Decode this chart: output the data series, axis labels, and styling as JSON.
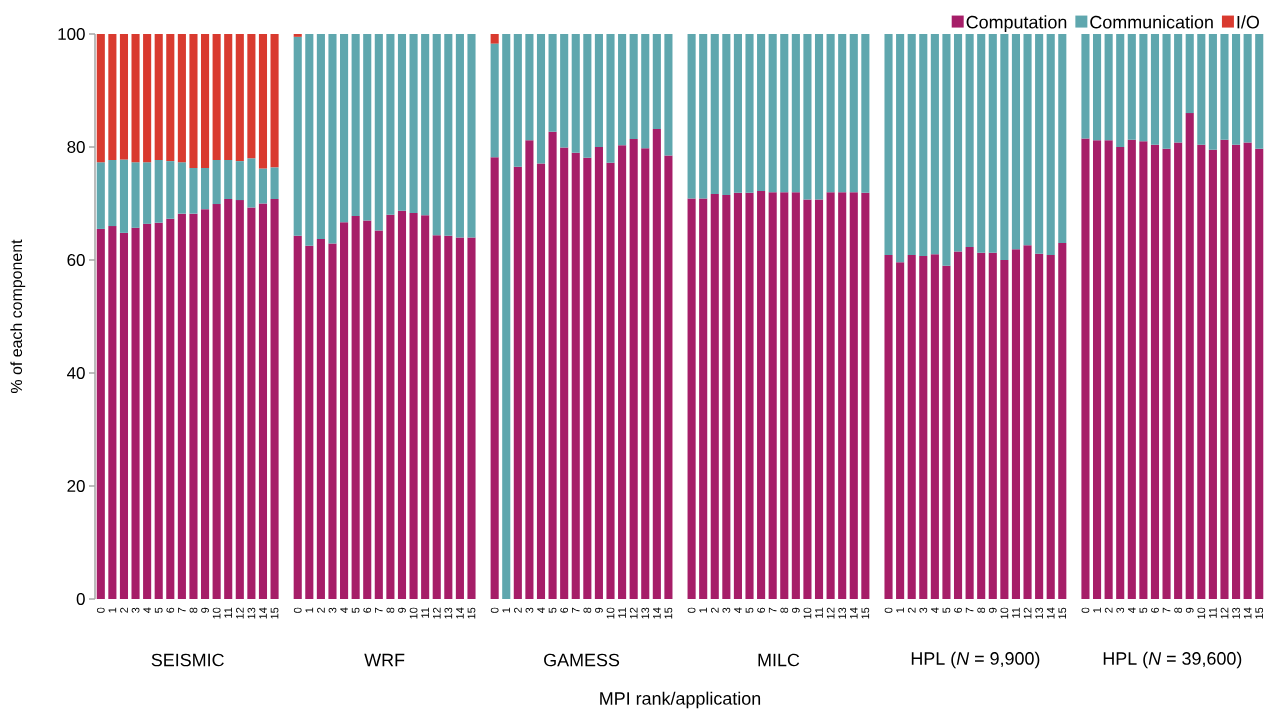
{
  "chart_data": {
    "type": "bar",
    "stacked": true,
    "xlabel": "MPI rank/application",
    "ylabel": "% of each component",
    "categories": [
      "0",
      "1",
      "2",
      "3",
      "4",
      "5",
      "6",
      "7",
      "8",
      "9",
      "10",
      "11",
      "12",
      "13",
      "14",
      "15",
      null,
      "0",
      "1",
      "2",
      "3",
      "4",
      "5",
      "6",
      "7",
      "8",
      "9",
      "10",
      "11",
      "12",
      "13",
      "14",
      "15",
      null,
      "0",
      "1",
      "2",
      "3",
      "4",
      "5",
      "6",
      "7",
      "8",
      "9",
      "10",
      "11",
      "12",
      "13",
      "14",
      "15",
      null,
      "0",
      "1",
      "2",
      "3",
      "4",
      "5",
      "6",
      "7",
      "8",
      "9",
      "10",
      "11",
      "12",
      "13",
      "14",
      "15",
      null,
      "0",
      "1",
      "2",
      "3",
      "4",
      "5",
      "6",
      "7",
      "8",
      "9",
      "10",
      "11",
      "12",
      "13",
      "14",
      "15",
      null,
      "0",
      "1",
      "2",
      "3",
      "4",
      "5",
      "6",
      "7",
      "8",
      "9",
      "10",
      "11",
      "12",
      "13",
      "14",
      "15"
    ],
    "series": [
      {
        "name": "Computation",
        "color": "#a61e68",
        "values": [
          65.5,
          66,
          64.8,
          65.7,
          66.4,
          66.6,
          67.3,
          68.2,
          68.2,
          69,
          69.9,
          70.8,
          70.6,
          69.3,
          70,
          70.8,
          null,
          64.3,
          62.5,
          63.7,
          62.9,
          66.7,
          67.8,
          67,
          65.2,
          68,
          68.7,
          68.3,
          67.9,
          64.4,
          64.3,
          64,
          64,
          null,
          78.2,
          0,
          76.5,
          81.2,
          77.1,
          82.7,
          79.9,
          79,
          78.1,
          80,
          77.2,
          80.3,
          81.4,
          79.8,
          83.2,
          78.5,
          null,
          70.9,
          70.9,
          71.7,
          71.5,
          71.9,
          71.9,
          72.2,
          72,
          72,
          72,
          70.7,
          70.7,
          72,
          72,
          72,
          71.9,
          null,
          60.9,
          59.6,
          60.9,
          60.7,
          61,
          59,
          61.5,
          62.3,
          61.3,
          61.3,
          60,
          61.9,
          62.6,
          61.1,
          60.9,
          63,
          null,
          81.5,
          81.2,
          81.2,
          80,
          81.3,
          81,
          80.4,
          79.7,
          80.8,
          86,
          80.4,
          79.5,
          81.3,
          80.4,
          80.8,
          79.7
        ]
      },
      {
        "name": "Communication",
        "color": "#5fa7ae",
        "values": [
          11.8,
          11.7,
          13,
          11.6,
          10.9,
          11.1,
          10.2,
          9.1,
          8.1,
          7.3,
          7.8,
          6.9,
          6.9,
          8.7,
          6.2,
          5.6,
          null,
          35.2,
          37.5,
          36.3,
          37.1,
          33.3,
          32.2,
          33,
          34.8,
          32,
          31.3,
          31.7,
          32.1,
          35.6,
          35.7,
          36,
          36,
          null,
          20.1,
          100,
          23.5,
          18.8,
          22.9,
          17.3,
          20.1,
          21,
          21.9,
          20,
          22.8,
          19.7,
          18.6,
          20.2,
          16.8,
          21.5,
          null,
          29.1,
          29.1,
          28.3,
          28.5,
          28.1,
          28.1,
          27.8,
          28,
          28,
          28,
          29.3,
          29.3,
          28,
          28,
          28,
          28.1,
          null,
          39.1,
          40.4,
          39.1,
          39.3,
          39,
          41,
          38.5,
          37.7,
          38.7,
          38.7,
          40,
          38.1,
          37.4,
          38.9,
          39.1,
          37,
          null,
          18.5,
          18.8,
          18.8,
          20,
          18.7,
          19,
          19.6,
          20.3,
          19.2,
          14,
          19.6,
          20.5,
          18.7,
          19.6,
          19.2,
          20.3
        ]
      },
      {
        "name": "I/O",
        "color": "#d93a2f",
        "values": [
          22.7,
          22.3,
          22.2,
          22.7,
          22.7,
          22.3,
          22.5,
          22.7,
          23.7,
          23.7,
          22.3,
          22.3,
          22.5,
          22,
          23.8,
          23.6,
          null,
          0.5,
          0,
          0,
          0,
          0,
          0,
          0,
          0,
          0,
          0,
          0,
          0,
          0,
          0,
          0,
          0,
          null,
          1.7,
          0,
          0,
          0,
          0,
          0,
          0,
          0,
          0,
          0,
          0,
          0,
          0,
          0,
          0,
          0,
          null,
          0,
          0,
          0,
          0,
          0,
          0,
          0,
          0,
          0,
          0,
          0,
          0,
          0,
          0,
          0,
          0,
          null,
          0,
          0,
          0,
          0,
          0,
          0,
          0,
          0,
          0,
          0,
          0,
          0,
          0,
          0,
          0,
          0,
          null,
          0,
          0,
          0,
          0,
          0,
          0,
          0,
          0,
          0,
          0,
          0,
          0,
          0,
          0,
          0,
          0
        ]
      }
    ],
    "ylim": [
      0,
      100
    ],
    "yticks": [
      0,
      20,
      40,
      60,
      80,
      100
    ],
    "legend": "top right",
    "annotations": [
      "SEISMIC",
      "WRF",
      "GAMESS",
      "MILC",
      "HPL (*N* = 9,900)",
      "HPL (*N* = 39,600)"
    ]
  }
}
